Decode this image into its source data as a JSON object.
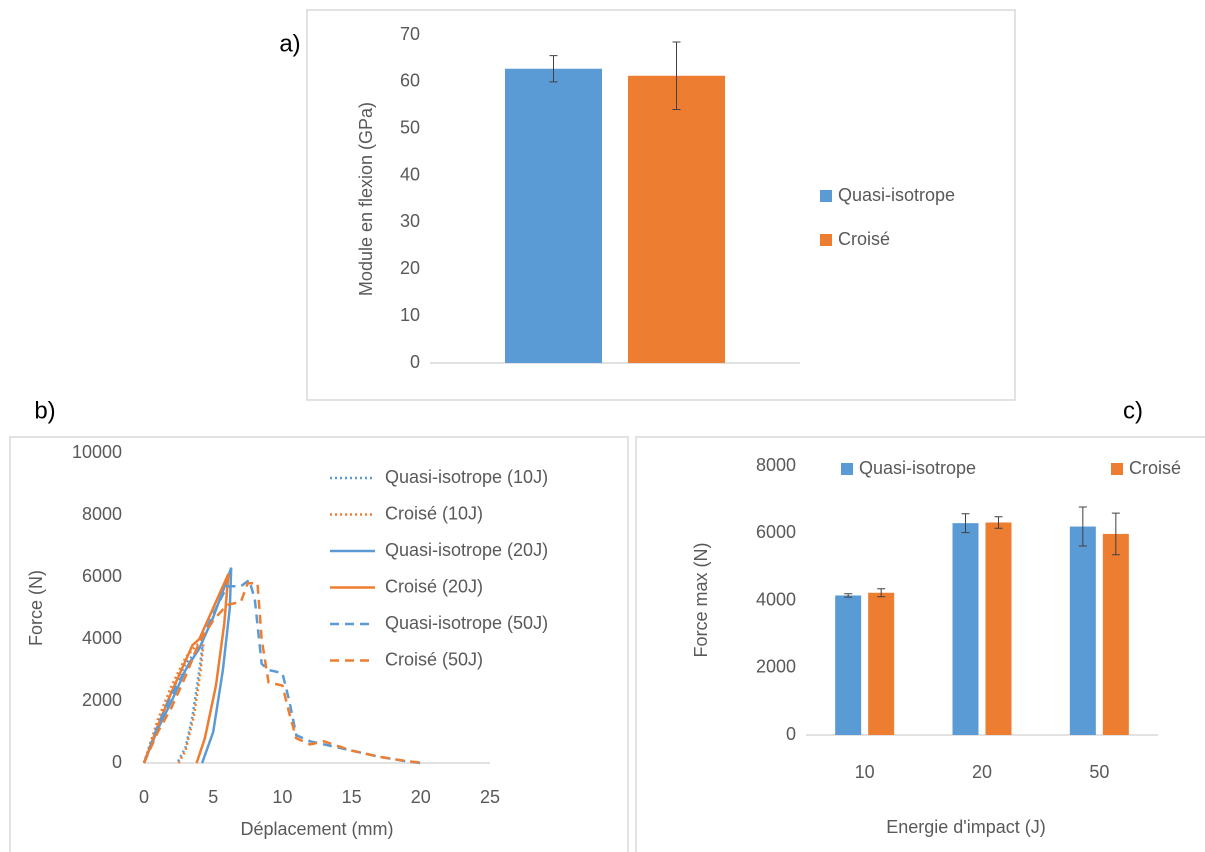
{
  "chart_data": [
    {
      "type": "bar",
      "label": "a)",
      "ylabel": "Module en flexion (GPa)",
      "categories": [
        null
      ],
      "series": [
        {
          "name": "Quasi-isotrope",
          "color": "#5b9bd5",
          "values": [
            62.8
          ],
          "errors": [
            2.8
          ]
        },
        {
          "name": "Croisé",
          "color": "#ed7d31",
          "values": [
            61.3
          ],
          "errors": [
            7.2
          ]
        }
      ],
      "ylim": [
        0,
        70
      ],
      "yticks": [
        0,
        10,
        20,
        30,
        40,
        50,
        60,
        70
      ],
      "grid": false,
      "legend": "right"
    },
    {
      "type": "line",
      "label": "b)",
      "xlabel": "Déplacement (mm)",
      "ylabel": "Force (N)",
      "series": [
        {
          "name": "Quasi-isotrope (10J)",
          "color": "#5b9bd5",
          "style": "dotted",
          "x": [
            0,
            0.5,
            1,
            2,
            3,
            3.8,
            4.2,
            4.0,
            3.5,
            3.0,
            2.4
          ],
          "values": [
            0,
            700,
            1300,
            2300,
            3200,
            3600,
            3700,
            3000,
            1500,
            500,
            0
          ]
        },
        {
          "name": "Croisé (10J)",
          "color": "#ed7d31",
          "style": "dotted",
          "x": [
            0,
            1,
            2,
            3,
            3.8,
            4.3,
            4.1,
            3.6,
            3.0,
            2.5
          ],
          "values": [
            0,
            1400,
            2500,
            3400,
            3800,
            3900,
            3000,
            1500,
            400,
            0
          ]
        },
        {
          "name": "Quasi-isotrope (20J)",
          "color": "#5b9bd5",
          "style": "solid",
          "x": [
            0,
            1,
            2,
            3,
            4,
            5,
            6,
            6.3,
            6.2,
            5.7,
            5.0,
            4.2
          ],
          "values": [
            0,
            1100,
            2000,
            3000,
            3700,
            4700,
            5900,
            6300,
            5000,
            3000,
            1000,
            0
          ]
        },
        {
          "name": "Croisé (20J)",
          "color": "#ed7d31",
          "style": "solid",
          "x": [
            0,
            1,
            2,
            3,
            3.5,
            4,
            5,
            6,
            6.1,
            5.8,
            5.2,
            4.4,
            3.8
          ],
          "values": [
            0,
            1200,
            2300,
            3300,
            3800,
            4000,
            5000,
            6000,
            6100,
            4500,
            2500,
            800,
            0
          ]
        },
        {
          "name": "Quasi-isotrope (50J)",
          "color": "#5b9bd5",
          "style": "dashed",
          "x": [
            0,
            1,
            2,
            3,
            4,
            5,
            6,
            7,
            7.6,
            8,
            8.5,
            9,
            10,
            10.5,
            11,
            12,
            13,
            15,
            17,
            19,
            20
          ],
          "values": [
            0,
            1200,
            2200,
            3000,
            3800,
            4800,
            5700,
            5700,
            5900,
            5300,
            3200,
            3000,
            2900,
            2000,
            900,
            700,
            600,
            400,
            200,
            50,
            0
          ]
        },
        {
          "name": "Croisé (50J)",
          "color": "#ed7d31",
          "style": "dashed",
          "x": [
            0,
            1,
            2,
            3,
            4,
            5,
            6,
            7,
            7.5,
            8.2,
            8.5,
            9,
            10,
            10.5,
            11,
            12,
            13,
            15,
            17,
            19,
            20.3
          ],
          "values": [
            0,
            1000,
            1800,
            2800,
            3900,
            4600,
            5100,
            5200,
            5800,
            5800,
            4000,
            2600,
            2500,
            1600,
            800,
            600,
            700,
            400,
            200,
            60,
            0
          ]
        }
      ],
      "xlim": [
        0,
        25
      ],
      "xticks": [
        0,
        5,
        10,
        15,
        20,
        25
      ],
      "ylim": [
        0,
        10000
      ],
      "yticks": [
        0,
        2000,
        4000,
        6000,
        8000,
        10000
      ],
      "grid": false,
      "legend": "upper right"
    },
    {
      "type": "bar",
      "label": "c)",
      "xlabel": "Energie d'impact (J)",
      "ylabel": "Force max (N)",
      "categories": [
        "10",
        "20",
        "50"
      ],
      "series": [
        {
          "name": "Quasi-isotrope",
          "color": "#5b9bd5",
          "values": [
            4150,
            6300,
            6200
          ],
          "errors": [
            50,
            280,
            580
          ]
        },
        {
          "name": "Croisé",
          "color": "#ed7d31",
          "values": [
            4230,
            6320,
            5980
          ],
          "errors": [
            120,
            170,
            620
          ]
        }
      ],
      "ylim": [
        0,
        8000
      ],
      "yticks": [
        0,
        2000,
        4000,
        6000,
        8000
      ],
      "grid": false,
      "legend": "top"
    }
  ]
}
